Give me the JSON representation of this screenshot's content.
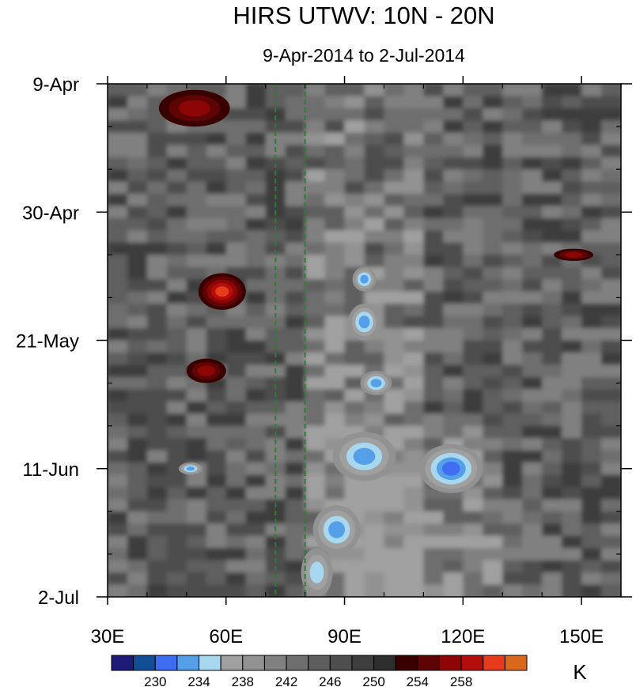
{
  "chart_data": {
    "type": "heatmap",
    "title": "HIRS UTWV: 10N - 20N",
    "subtitle": "9-Apr-2014 to 2-Jul-2014",
    "xlabel": "",
    "ylabel": "",
    "x_ticks": [
      {
        "value": 30,
        "label": "30E"
      },
      {
        "value": 60,
        "label": "60E"
      },
      {
        "value": 90,
        "label": "90E"
      },
      {
        "value": 120,
        "label": "120E"
      },
      {
        "value": 150,
        "label": "150E"
      }
    ],
    "xlim": [
      30,
      160
    ],
    "y_ticks": [
      {
        "value": 0,
        "label": "9-Apr"
      },
      {
        "value": 21,
        "label": "30-Apr"
      },
      {
        "value": 42,
        "label": "21-May"
      },
      {
        "value": 63,
        "label": "11-Jun"
      },
      {
        "value": 84,
        "label": "2-Jul"
      }
    ],
    "ylim_days": [
      0,
      84
    ],
    "y_direction": "time increases downward",
    "reference_lines": [
      {
        "longitude": 72.5,
        "style": "dashed",
        "color": "#2e7d32"
      },
      {
        "longitude": 80,
        "style": "dashed",
        "color": "#2e7d32"
      }
    ],
    "colorbar": {
      "unit": "K",
      "levels": [
        228,
        230,
        232,
        234,
        236,
        238,
        240,
        242,
        244,
        246,
        248,
        250,
        252,
        254,
        256,
        258,
        260
      ],
      "labels": [
        "230",
        "234",
        "238",
        "242",
        "246",
        "250",
        "254",
        "258"
      ],
      "colors": [
        "#1c1c78",
        "#124e96",
        "#3f6cf0",
        "#559fe8",
        "#a7d8ef",
        "#a0a0a0",
        "#929292",
        "#808080",
        "#6e6e6e",
        "#5e5e5e",
        "#4e4e4e",
        "#3e3e3e",
        "#2e2e2e",
        "#3a0000",
        "#5e0404",
        "#8c0606",
        "#b40d0d",
        "#e63b1c",
        "#d9681c"
      ]
    },
    "features": [
      {
        "type": "moist",
        "lon": 83,
        "day": 80,
        "dlon": 4,
        "dday": 4,
        "level": 234
      },
      {
        "type": "moist",
        "lon": 88,
        "day": 73,
        "dlon": 6,
        "dday": 4,
        "level": 233
      },
      {
        "type": "moist",
        "lon": 95,
        "day": 61,
        "dlon": 8,
        "dday": 4,
        "level": 233
      },
      {
        "type": "moist",
        "lon": 117,
        "day": 63,
        "dlon": 8,
        "dday": 4,
        "level": 230
      },
      {
        "type": "moist",
        "lon": 98,
        "day": 49,
        "dlon": 4,
        "dday": 2,
        "level": 232
      },
      {
        "type": "moist",
        "lon": 95,
        "day": 39,
        "dlon": 4,
        "dday": 3,
        "level": 232
      },
      {
        "type": "moist",
        "lon": 95,
        "day": 32,
        "dlon": 3,
        "dday": 2,
        "level": 232
      },
      {
        "type": "moist",
        "lon": 51,
        "day": 63,
        "dlon": 3,
        "dday": 1,
        "level": 233
      },
      {
        "type": "dry",
        "lon": 52,
        "day": 4,
        "dlon": 9,
        "dday": 3,
        "level": 256
      },
      {
        "type": "dry",
        "lon": 59,
        "day": 34,
        "dlon": 6,
        "dday": 3,
        "level": 259
      },
      {
        "type": "dry",
        "lon": 55,
        "day": 47,
        "dlon": 5,
        "dday": 2,
        "level": 255
      },
      {
        "type": "dry",
        "lon": 148,
        "day": 28,
        "dlon": 5,
        "dday": 1,
        "level": 255
      }
    ]
  }
}
